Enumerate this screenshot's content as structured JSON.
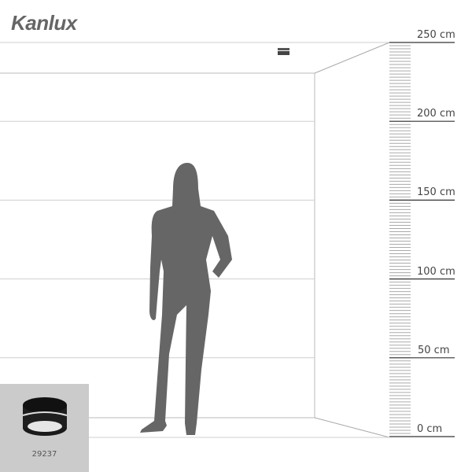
{
  "brand": {
    "logo_text": "Kanlux"
  },
  "scale": {
    "unit": "cm",
    "labels": [
      "250 cm",
      "200 cm",
      "150 cm",
      "100 cm",
      "50 cm",
      "0 cm"
    ],
    "values": [
      250,
      200,
      150,
      100,
      50,
      0
    ]
  },
  "product": {
    "code": "29237",
    "icon": "black-ring-downlight-icon"
  },
  "colors": {
    "silhouette": "#666666",
    "lines": "#cfcfcf",
    "product_bg": "#cbcbcb"
  }
}
